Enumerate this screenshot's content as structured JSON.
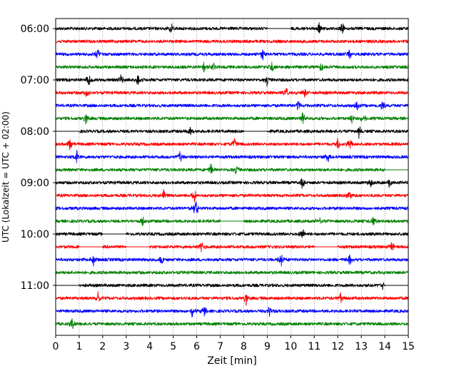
{
  "chart_data": {
    "type": "line",
    "title": "",
    "xlabel": "Zeit  [min]",
    "ylabel": "UTC (Lokalzeit = UTC + 02:00)",
    "xlim": [
      0,
      15
    ],
    "x_ticks": [
      0,
      1,
      2,
      3,
      4,
      5,
      6,
      7,
      8,
      9,
      10,
      11,
      12,
      13,
      14,
      15
    ],
    "y_tick_labels": [
      "06:00",
      "07:00",
      "08:00",
      "09:00",
      "10:00",
      "11:00"
    ],
    "row_minutes": 15,
    "grid": "vertical dotted",
    "color_cycle": [
      "#000000",
      "#ff0000",
      "#0000ff",
      "#008000"
    ],
    "traces": [
      {
        "start": "06:00",
        "gaps": [
          [
            9.0,
            10.0
          ]
        ],
        "events": [
          4.9,
          11.2,
          12.2
        ]
      },
      {
        "start": "06:15",
        "gaps": [],
        "events": []
      },
      {
        "start": "06:30",
        "gaps": [],
        "events": [
          1.8,
          8.8,
          12.5
        ]
      },
      {
        "start": "06:45",
        "gaps": [],
        "events": [
          6.3,
          6.7,
          9.2,
          11.3
        ]
      },
      {
        "start": "07:00",
        "gaps": [],
        "events": [
          1.4,
          2.8,
          3.5,
          9.0
        ]
      },
      {
        "start": "07:15",
        "gaps": [],
        "events": [
          1.3,
          9.8,
          10.6
        ]
      },
      {
        "start": "07:30",
        "gaps": [],
        "events": [
          10.3,
          12.8,
          13.9
        ]
      },
      {
        "start": "07:45",
        "gaps": [],
        "events": [
          1.3,
          10.5,
          12.6,
          13.1
        ]
      },
      {
        "start": "08:00",
        "gaps": [
          [
            0.0,
            1.0
          ],
          [
            8.0,
            9.0
          ]
        ],
        "events": [
          5.7,
          12.9
        ]
      },
      {
        "start": "08:15",
        "gaps": [],
        "events": [
          0.6,
          7.6,
          12.0,
          12.5
        ]
      },
      {
        "start": "08:30",
        "gaps": [],
        "events": [
          0.9,
          5.3,
          11.6
        ]
      },
      {
        "start": "08:45",
        "gaps": [
          [
            14.0,
            15.0
          ]
        ],
        "events": [
          6.6,
          7.7
        ]
      },
      {
        "start": "09:00",
        "gaps": [],
        "events": [
          10.5,
          13.4,
          14.2
        ]
      },
      {
        "start": "09:15",
        "gaps": [],
        "events": [
          4.6,
          5.9,
          12.5
        ]
      },
      {
        "start": "09:30",
        "gaps": [],
        "events": [
          5.9,
          6.0
        ]
      },
      {
        "start": "09:45",
        "gaps": [
          [
            7.0,
            8.0
          ]
        ],
        "events": [
          3.7,
          11.2,
          13.5
        ]
      },
      {
        "start": "10:00",
        "gaps": [
          [
            2.0,
            3.0
          ]
        ],
        "events": [
          10.5
        ]
      },
      {
        "start": "10:15",
        "gaps": [
          [
            1.0,
            2.0
          ],
          [
            3.0,
            4.0
          ],
          [
            11.0,
            12.0
          ]
        ],
        "events": [
          6.2,
          14.3
        ]
      },
      {
        "start": "10:30",
        "gaps": [],
        "events": [
          1.6,
          4.5,
          9.6,
          12.5
        ]
      },
      {
        "start": "10:45",
        "gaps": [],
        "events": []
      },
      {
        "start": "11:00",
        "gaps": [
          [
            0.0,
            1.0
          ],
          [
            14.0,
            15.0
          ]
        ],
        "events": [
          13.9
        ]
      },
      {
        "start": "11:15",
        "gaps": [],
        "events": [
          1.8,
          8.1,
          12.1
        ]
      },
      {
        "start": "11:30",
        "gaps": [],
        "events": [
          5.8,
          6.3,
          9.1
        ]
      },
      {
        "start": "11:45",
        "gaps": [],
        "events": [
          0.7
        ]
      }
    ]
  }
}
